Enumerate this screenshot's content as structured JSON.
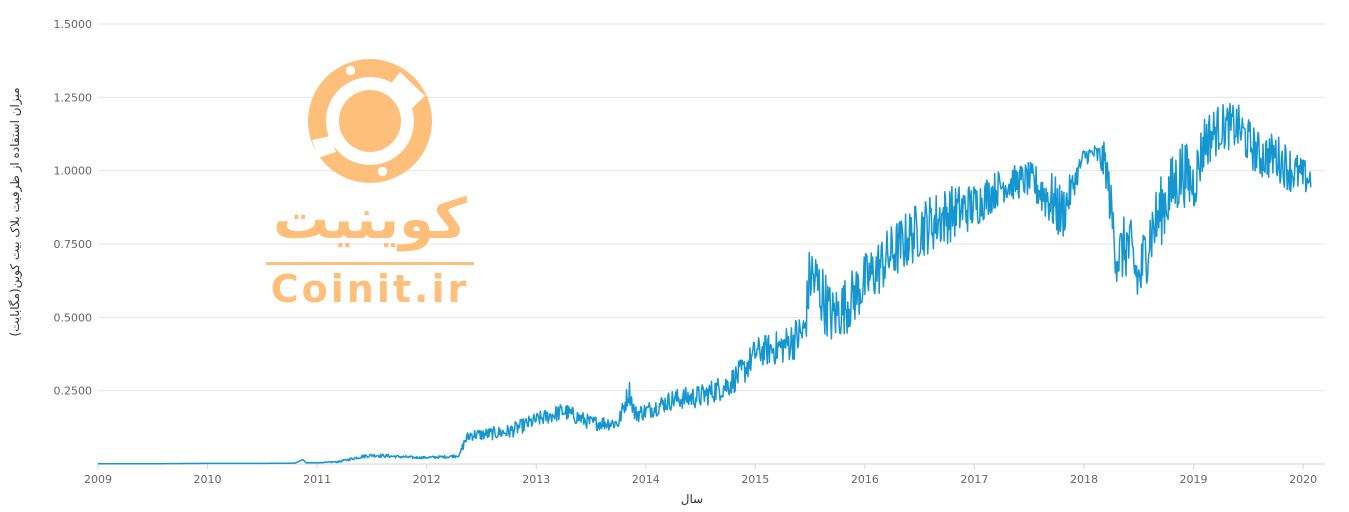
{
  "chart_data": {
    "type": "line",
    "title": "",
    "xlabel": "سال",
    "ylabel": "میزان استفاده از ظرفیت بلاک بیت کوین(مگابایت)",
    "xlim": [
      2009,
      2020.2
    ],
    "ylim": [
      0,
      1.5
    ],
    "x_ticks": [
      "2009",
      "2010",
      "2011",
      "2012",
      "2013",
      "2014",
      "2015",
      "2016",
      "2017",
      "2018",
      "2019",
      "2020"
    ],
    "y_ticks": [
      "0.2500",
      "0.5000",
      "0.7500",
      "1.0000",
      "1.2500",
      "1.5000"
    ],
    "grid": true,
    "series": [
      {
        "color": "#1596d1",
        "x": [
          2009.0,
          2009.5,
          2010.0,
          2010.5,
          2010.8,
          2010.87,
          2010.9,
          2011.0,
          2011.2,
          2011.4,
          2011.5,
          2011.6,
          2011.75,
          2011.9,
          2012.0,
          2012.2,
          2012.3,
          2012.35,
          2012.4,
          2012.5,
          2012.75,
          2013.0,
          2013.25,
          2013.5,
          2013.75,
          2013.85,
          2013.9,
          2014.0,
          2014.25,
          2014.5,
          2014.75,
          2014.9,
          2015.0,
          2015.25,
          2015.45,
          2015.5,
          2015.58,
          2015.7,
          2015.85,
          2016.0,
          2016.25,
          2016.5,
          2016.75,
          2017.0,
          2017.25,
          2017.5,
          2017.7,
          2017.8,
          2017.9,
          2018.0,
          2018.1,
          2018.2,
          2018.3,
          2018.4,
          2018.5,
          2018.6,
          2018.75,
          2018.9,
          2019.0,
          2019.1,
          2019.25,
          2019.4,
          2019.5,
          2019.6,
          2019.75,
          2019.9,
          2020.0,
          2020.07
        ],
        "y": [
          0.001,
          0.001,
          0.002,
          0.002,
          0.003,
          0.015,
          0.004,
          0.004,
          0.008,
          0.025,
          0.03,
          0.028,
          0.025,
          0.022,
          0.022,
          0.025,
          0.03,
          0.08,
          0.1,
          0.1,
          0.11,
          0.15,
          0.18,
          0.14,
          0.14,
          0.25,
          0.17,
          0.18,
          0.22,
          0.23,
          0.27,
          0.32,
          0.38,
          0.4,
          0.45,
          0.65,
          0.6,
          0.5,
          0.55,
          0.62,
          0.72,
          0.8,
          0.85,
          0.88,
          0.95,
          0.97,
          0.9,
          0.85,
          0.95,
          1.05,
          1.06,
          1.02,
          0.7,
          0.75,
          0.62,
          0.78,
          0.9,
          1.0,
          0.95,
          1.1,
          1.15,
          1.15,
          1.1,
          1.05,
          1.05,
          1.0,
          0.98,
          0.97
        ],
        "noise": [
          0.0,
          0.0,
          0.0,
          0.0,
          0.0,
          0.0,
          0.0,
          0.0,
          0.003,
          0.006,
          0.006,
          0.006,
          0.005,
          0.004,
          0.004,
          0.005,
          0.006,
          0.02,
          0.02,
          0.02,
          0.025,
          0.025,
          0.03,
          0.025,
          0.025,
          0.04,
          0.03,
          0.03,
          0.035,
          0.04,
          0.045,
          0.05,
          0.05,
          0.06,
          0.08,
          0.12,
          0.12,
          0.1,
          0.1,
          0.1,
          0.1,
          0.1,
          0.1,
          0.08,
          0.06,
          0.06,
          0.1,
          0.1,
          0.05,
          0.03,
          0.03,
          0.08,
          0.1,
          0.12,
          0.12,
          0.12,
          0.12,
          0.12,
          0.1,
          0.1,
          0.08,
          0.08,
          0.08,
          0.08,
          0.08,
          0.08,
          0.06,
          0.06
        ]
      }
    ]
  },
  "watermark": {
    "brand_fa": "کوینیت",
    "brand_en": "Coinit.ir",
    "color": "#fdbf79"
  }
}
